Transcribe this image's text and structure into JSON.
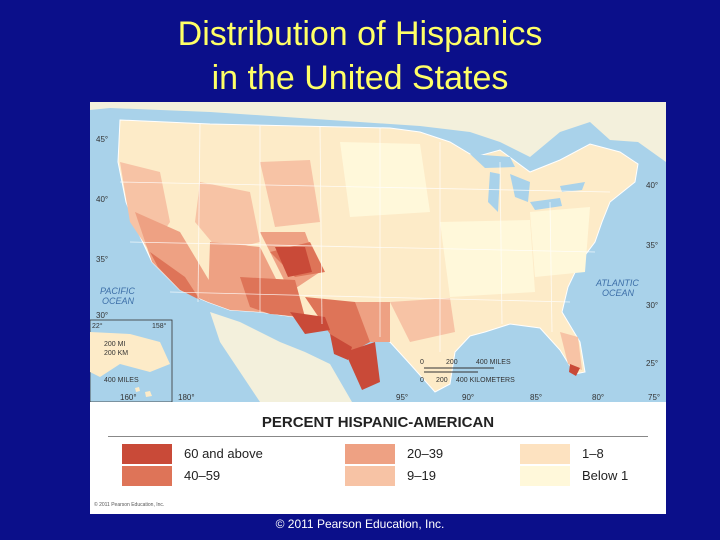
{
  "slide": {
    "title_line1": "Distribution of Hispanics",
    "title_line2": "in the United States",
    "footer": "© 2011 Pearson Education, Inc."
  },
  "map": {
    "ocean_labels": {
      "pacific_1": "PACIFIC",
      "pacific_2": "OCEAN",
      "atlantic_1": "ATLANTIC",
      "atlantic_2": "OCEAN"
    },
    "latitude_labels": [
      "45°",
      "40°",
      "35°",
      "30°",
      "40°",
      "35°",
      "30°",
      "25°"
    ],
    "longitude_labels": [
      "95°",
      "90°",
      "85°",
      "80°",
      "75°",
      "160°",
      "180°"
    ],
    "scale_bar": {
      "miles_ticks": [
        "0",
        "200",
        "400 MILES"
      ],
      "km_ticks": [
        "0",
        "200",
        "400 KILOMETERS"
      ]
    },
    "inset_scale": {
      "alaska_miles": "400 MILES",
      "hawaii_mi": "200 MI",
      "hawaii_km": "200 KM",
      "inset_lat": "22°",
      "inset_lon": "158°"
    },
    "small_copyright": "© 2011 Pearson Education, Inc.",
    "colors": {
      "ocean": "#a9d2ea",
      "land_base": "#fdebc8",
      "cat_60_above": "#c94a38",
      "cat_40_59": "#de7458",
      "cat_20_39": "#eea183",
      "cat_9_19": "#f7c3a5",
      "cat_1_8": "#fde2c0",
      "cat_below_1": "#fff8da"
    }
  },
  "legend": {
    "title": "PERCENT HISPANIC-AMERICAN",
    "items": [
      {
        "label": "60 and above",
        "color": "#c94a38"
      },
      {
        "label": "40–59",
        "color": "#de7458"
      },
      {
        "label": "20–39",
        "color": "#eea183"
      },
      {
        "label": "9–19",
        "color": "#f7c3a5"
      },
      {
        "label": "1–8",
        "color": "#fde2c0"
      },
      {
        "label": "Below 1",
        "color": "#fff8da"
      }
    ]
  }
}
